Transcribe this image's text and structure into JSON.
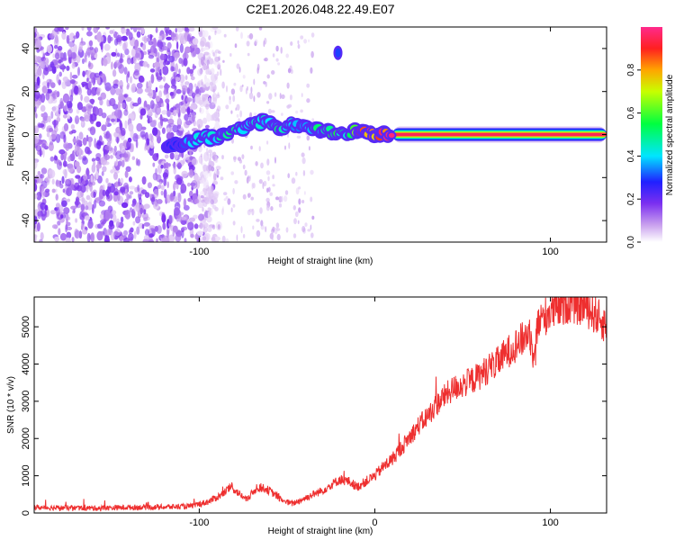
{
  "title": "C2E1.2026.048.22.49.E07",
  "chart_data": [
    {
      "type": "heatmap",
      "xlabel": "Height of straight line (km)",
      "ylabel": "Frequency (Hz)",
      "xlim": [
        -194,
        132
      ],
      "ylim": [
        -50,
        50
      ],
      "x_ticks": [
        -100,
        100
      ],
      "y_ticks": [
        -40,
        -20,
        0,
        20,
        40
      ],
      "colorbar": {
        "label": "Normalized spectral amplitude",
        "range": [
          0,
          1
        ],
        "ticks": [
          "0.0",
          "0.2",
          "0.4",
          "0.6",
          "0.8"
        ]
      },
      "noise_region": {
        "x_from": -194,
        "x_to": -100,
        "density": "high"
      },
      "sparse_region": {
        "x_from": -100,
        "x_to": -35,
        "density": "low"
      },
      "signal_track": [
        {
          "x": -118,
          "freq": -6,
          "amp": 0.25
        },
        {
          "x": -110,
          "freq": -4,
          "amp": 0.3
        },
        {
          "x": -100,
          "freq": -2,
          "amp": 0.4
        },
        {
          "x": -90,
          "freq": -1,
          "amp": 0.45
        },
        {
          "x": -80,
          "freq": 2,
          "amp": 0.45
        },
        {
          "x": -70,
          "freq": 4,
          "amp": 0.45
        },
        {
          "x": -62,
          "freq": 7,
          "amp": 0.4
        },
        {
          "x": -55,
          "freq": 3,
          "amp": 0.45
        },
        {
          "x": -48,
          "freq": 5,
          "amp": 0.4
        },
        {
          "x": -40,
          "freq": 3,
          "amp": 0.4
        },
        {
          "x": -32,
          "freq": 2,
          "amp": 0.45
        },
        {
          "x": -24,
          "freq": 1,
          "amp": 0.5
        },
        {
          "x": -15,
          "freq": 1,
          "amp": 0.5
        },
        {
          "x": -8,
          "freq": 2,
          "amp": 0.85
        },
        {
          "x": 2,
          "freq": 0,
          "amp": 0.85
        },
        {
          "x": 10,
          "freq": 0,
          "amp": 0.9
        },
        {
          "x": 132,
          "freq": 0,
          "amp": 0.9
        }
      ],
      "carrier_line": {
        "x_from": 10,
        "x_to": 132,
        "freq": 0,
        "amp": 0.95
      },
      "isolated_blob": {
        "x": -21,
        "freq": 38,
        "amp": 0.3
      }
    },
    {
      "type": "line",
      "xlabel": "Height of straight line (km)",
      "ylabel": "SNR (10 * v/v)",
      "xlim": [
        -194,
        132
      ],
      "ylim": [
        0,
        5800
      ],
      "x_ticks": [
        -100,
        0,
        100
      ],
      "y_ticks": [
        0,
        1000,
        2000,
        3000,
        4000,
        5000
      ],
      "color": "#ee2f2f",
      "series": [
        {
          "name": "SNR",
          "x": [
            -194,
            -180,
            -160,
            -140,
            -120,
            -105,
            -95,
            -87,
            -82,
            -78,
            -73,
            -67,
            -62,
            -57,
            -52,
            -47,
            -42,
            -35,
            -30,
            -25,
            -20,
            -15,
            -10,
            -5,
            0,
            5,
            10,
            15,
            20,
            25,
            30,
            35,
            40,
            45,
            50,
            55,
            60,
            65,
            70,
            75,
            80,
            85,
            88,
            90,
            92,
            95,
            100,
            105,
            110,
            115,
            120,
            125,
            130,
            132
          ],
          "y": [
            150,
            140,
            130,
            150,
            160,
            180,
            300,
            500,
            700,
            550,
            350,
            700,
            650,
            500,
            320,
            250,
            350,
            500,
            600,
            750,
            900,
            850,
            700,
            850,
            1000,
            1250,
            1450,
            1750,
            2050,
            2350,
            2600,
            2900,
            3150,
            3350,
            3450,
            3550,
            3700,
            3900,
            4050,
            4300,
            4500,
            4700,
            4900,
            4300,
            4950,
            5200,
            5400,
            5500,
            5650,
            5600,
            5550,
            5350,
            5100,
            5150
          ]
        }
      ]
    }
  ]
}
